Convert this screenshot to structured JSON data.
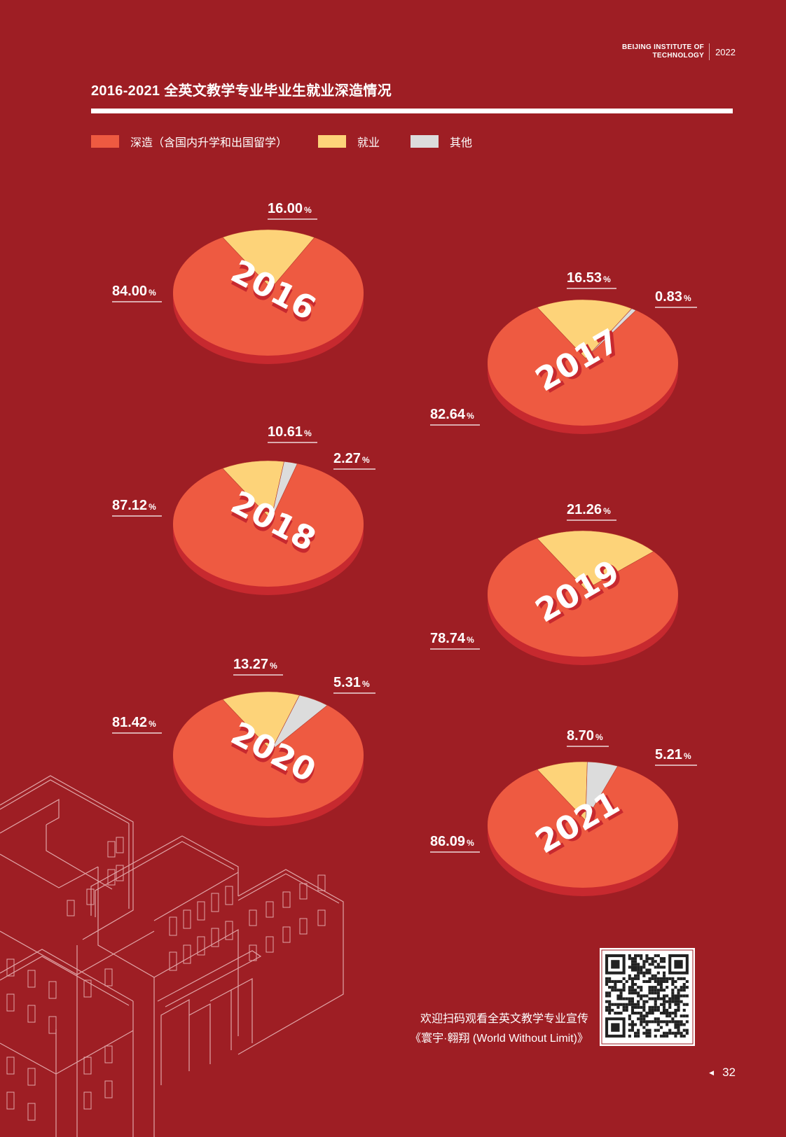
{
  "header": {
    "institution_line1": "BEIJING INSTITUTE OF",
    "institution_line2": "TECHNOLOGY",
    "year": "2022"
  },
  "title": "2016-2021 全英文教学专业毕业生就业深造情况",
  "legend": [
    {
      "label": "深造（含国内升学和出国留学）",
      "color": "#ee5a41"
    },
    {
      "label": "就业",
      "color": "#fdd379"
    },
    {
      "label": "其他",
      "color": "#dcdcdc"
    }
  ],
  "chart_data": [
    {
      "type": "pie",
      "year": "2016",
      "slices": [
        {
          "label": "深造",
          "value": 84.0,
          "text": "84.00"
        },
        {
          "label": "就业",
          "value": 16.0,
          "text": "16.00"
        }
      ]
    },
    {
      "type": "pie",
      "year": "2017",
      "slices": [
        {
          "label": "深造",
          "value": 82.64,
          "text": "82.64"
        },
        {
          "label": "就业",
          "value": 16.53,
          "text": "16.53"
        },
        {
          "label": "其他",
          "value": 0.83,
          "text": "0.83"
        }
      ]
    },
    {
      "type": "pie",
      "year": "2018",
      "slices": [
        {
          "label": "深造",
          "value": 87.12,
          "text": "87.12"
        },
        {
          "label": "就业",
          "value": 10.61,
          "text": "10.61"
        },
        {
          "label": "其他",
          "value": 2.27,
          "text": "2.27"
        }
      ]
    },
    {
      "type": "pie",
      "year": "2019",
      "slices": [
        {
          "label": "深造",
          "value": 78.74,
          "text": "78.74"
        },
        {
          "label": "就业",
          "value": 21.26,
          "text": "21.26"
        }
      ]
    },
    {
      "type": "pie",
      "year": "2020",
      "slices": [
        {
          "label": "深造",
          "value": 81.42,
          "text": "81.42"
        },
        {
          "label": "就业",
          "value": 13.27,
          "text": "13.27"
        },
        {
          "label": "其他",
          "value": 5.31,
          "text": "5.31"
        }
      ]
    },
    {
      "type": "pie",
      "year": "2021",
      "slices": [
        {
          "label": "深造",
          "value": 86.09,
          "text": "86.09"
        },
        {
          "label": "就业",
          "value": 8.7,
          "text": "8.70"
        },
        {
          "label": "其他",
          "value": 5.21,
          "text": "5.21"
        }
      ]
    }
  ],
  "percent_sign": "%",
  "footer": {
    "line1": "欢迎扫码观看全英文教学专业宣传",
    "line2": "《寰宇·翱翔 (World  Without Limit)》"
  },
  "page_number": "32",
  "colors": {
    "background": "#9e1e24",
    "pie_side": "#c7292f",
    "year_text": "#ffffff",
    "year_shadow": "#c7292f"
  }
}
